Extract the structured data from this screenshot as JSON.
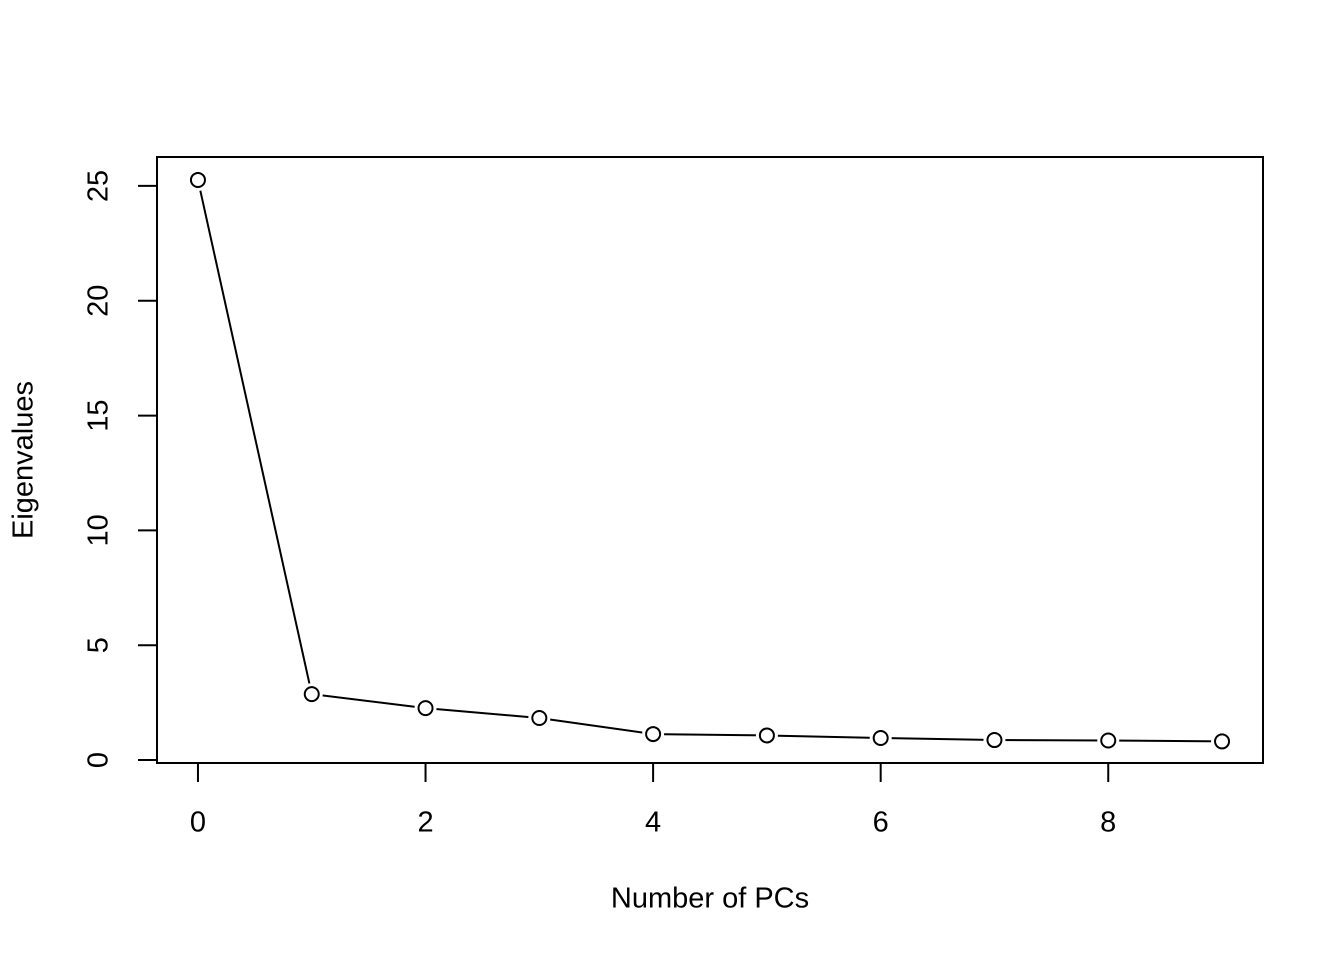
{
  "chart_data": {
    "type": "line",
    "x_label": "Number of PCs",
    "y_label": "Eigenvalues",
    "x": [
      0,
      1,
      2,
      3,
      4,
      5,
      6,
      7,
      8,
      9
    ],
    "values": [
      25.26,
      2.87,
      2.26,
      1.83,
      1.13,
      1.07,
      0.96,
      0.87,
      0.85,
      0.81
    ],
    "color": "#000000",
    "marker": "open-circle",
    "xlim": [
      -0.36,
      9.36
    ],
    "xticks": [
      0,
      2,
      4,
      6,
      8
    ],
    "ylim": [
      -0.13,
      26.26
    ],
    "yticks": [
      0,
      5,
      10,
      15,
      20,
      25
    ],
    "grid": false
  }
}
